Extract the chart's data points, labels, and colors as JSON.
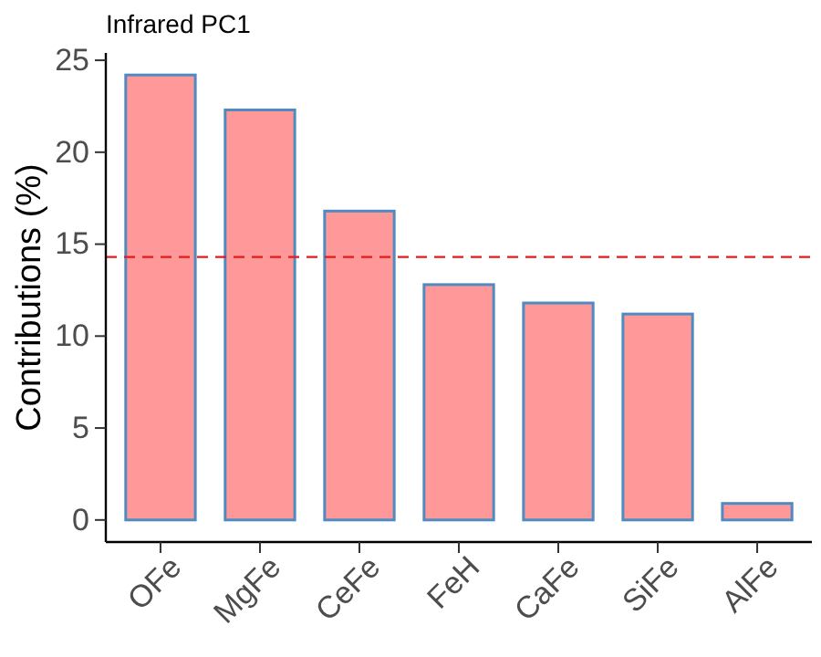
{
  "chart_data": {
    "type": "bar",
    "title": "Infrared PC1",
    "ylabel": "Contributions (%)",
    "categories": [
      "OFe",
      "MgFe",
      "CeFe",
      "FeH",
      "CaFe",
      "SiFe",
      "AlFe"
    ],
    "values": [
      24.2,
      22.3,
      16.8,
      12.8,
      11.8,
      11.2,
      0.9
    ],
    "color": "#ff9999",
    "ylim": [
      -1.2,
      25.4
    ],
    "yticks": [
      0,
      5,
      10,
      15,
      20,
      25
    ],
    "ref_lines": [
      {
        "axis": "y",
        "value": 14.3,
        "color": "#e41a1c",
        "line_style": "dashed"
      }
    ],
    "grid": false
  }
}
